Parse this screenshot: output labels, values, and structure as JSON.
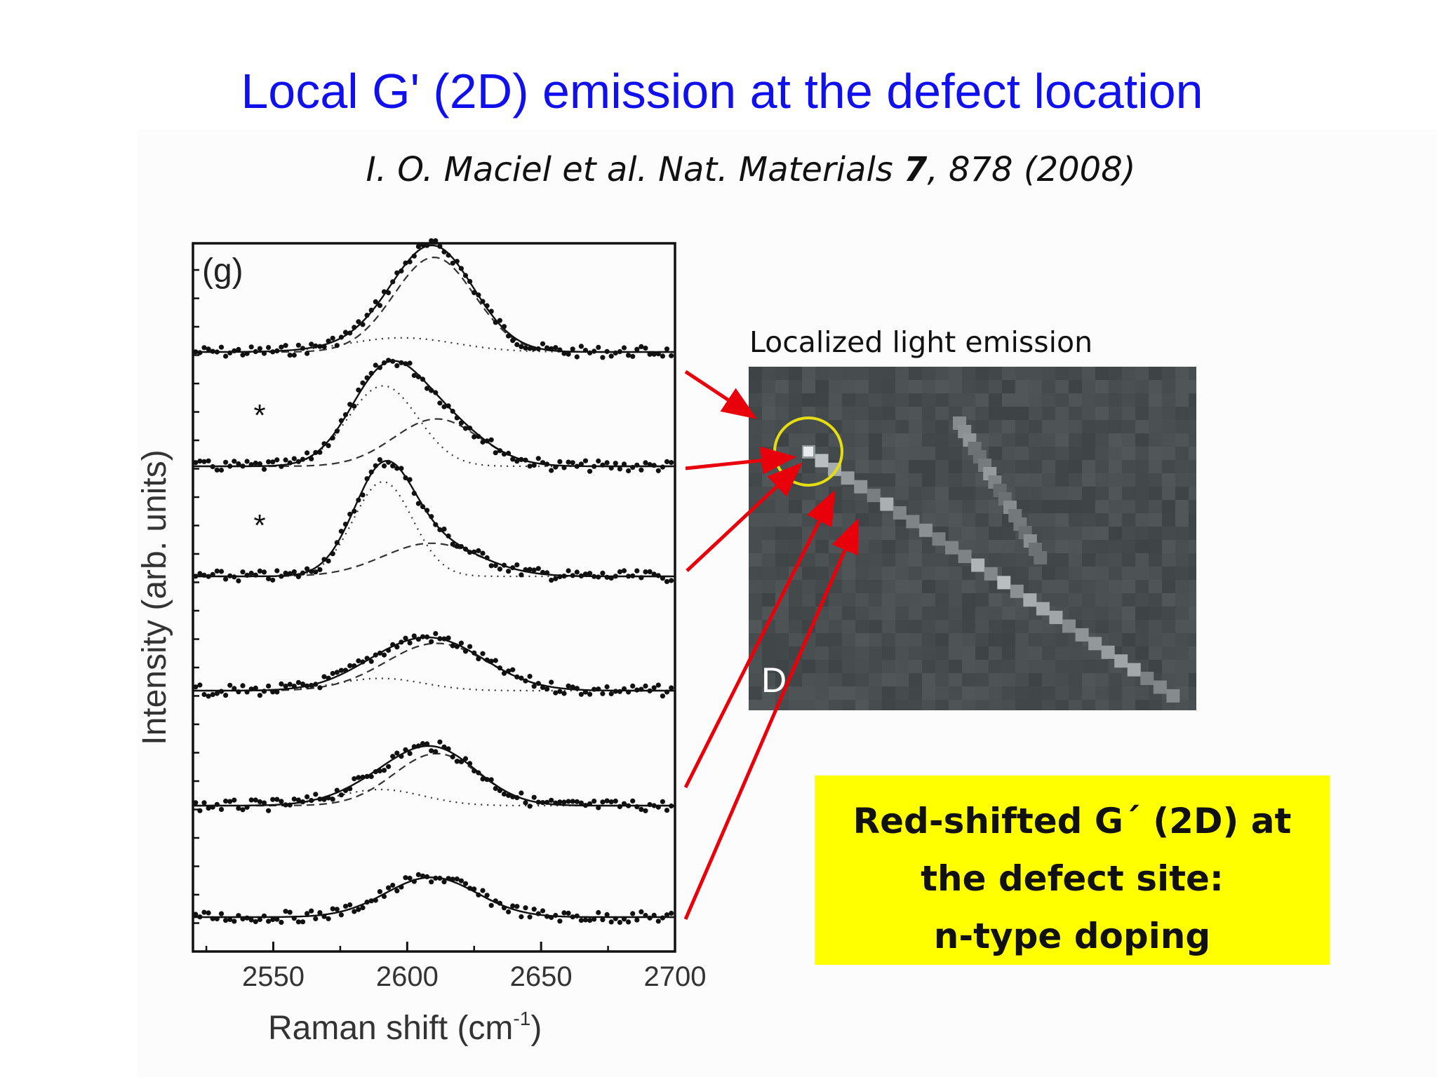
{
  "slide": {
    "title": "Local G' (2D) emission at the defect location",
    "citation": {
      "authors": "I. O. Maciel et al. Nat. Materials ",
      "volume": "7",
      "pages_year": ", 878 (2008)"
    }
  },
  "figure": {
    "caption": "Localized light emission",
    "micrograph_label": "D"
  },
  "note": {
    "lines": [
      "Red-shifted G´ (2D) at",
      "the defect site:",
      "n-type doping"
    ]
  },
  "colors": {
    "title": "#1010ee",
    "note_background": "#ffff00",
    "arrow": "#e8000b",
    "highlight_circle": "#e6dc12",
    "micrograph": "#474d51"
  },
  "chart_data": {
    "type": "line",
    "panel_label": "(g)",
    "xlabel": "Raman shift (cm",
    "xlabel_sup": "-1",
    "xlabel_close": ")",
    "ylabel": "Intensity (arb. units)",
    "xlim": [
      2520,
      2700
    ],
    "xticks": [
      2550,
      2600,
      2650,
      2700
    ],
    "y_units": "arb. units",
    "stacked_spectra": [
      {
        "marker": "",
        "peaks": [
          {
            "center": 2610,
            "width": 15,
            "amp": 1.0
          },
          {
            "center": 2598,
            "width": 20,
            "amp": 0.15
          }
        ]
      },
      {
        "marker": "*",
        "peaks": [
          {
            "center": 2591,
            "width": 13,
            "amp": 0.85
          },
          {
            "center": 2611,
            "width": 16,
            "amp": 0.5
          }
        ]
      },
      {
        "marker": "*",
        "peaks": [
          {
            "center": 2591,
            "width": 11,
            "amp": 1.0
          },
          {
            "center": 2609,
            "width": 18,
            "amp": 0.35
          }
        ]
      },
      {
        "marker": "",
        "peaks": [
          {
            "center": 2611,
            "width": 19,
            "amp": 0.5
          },
          {
            "center": 2590,
            "width": 16,
            "amp": 0.13
          }
        ]
      },
      {
        "marker": "",
        "peaks": [
          {
            "center": 2611,
            "width": 16,
            "amp": 0.55
          },
          {
            "center": 2590,
            "width": 16,
            "amp": 0.17
          }
        ]
      },
      {
        "marker": "",
        "peaks": [
          {
            "center": 2609,
            "width": 17,
            "amp": 0.42
          }
        ]
      }
    ]
  }
}
